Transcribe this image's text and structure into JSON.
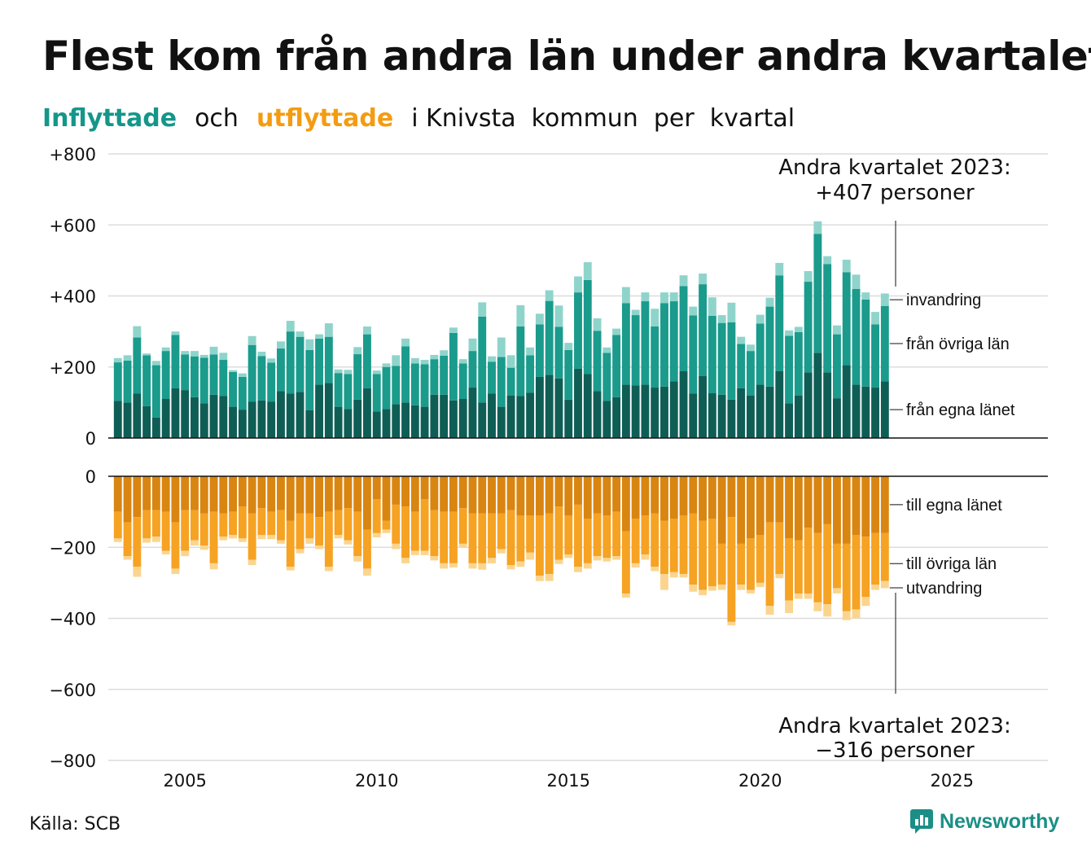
{
  "title": "Flest kom från andra län under andra kvartalet",
  "subtitle": {
    "part1": "Inflyttade",
    "part2": "och",
    "part3": "utflyttade",
    "part4": "i Knivsta  kommun  per  kvartal"
  },
  "source": "Källa: SCB",
  "brand": "Newsworthy",
  "colors": {
    "in_own": "#0f5e56",
    "in_other": "#1a9b8c",
    "in_immig": "#8fd4cb",
    "out_own": "#d98511",
    "out_other": "#f6a223",
    "out_emig": "#fbd58f",
    "teal_text": "#14968a",
    "orange_text": "#f39c12"
  },
  "chart_data": {
    "type": "bar",
    "stacked": true,
    "x_label": "",
    "x_ticks": [
      "2005",
      "2010",
      "2015",
      "2020",
      "2025"
    ],
    "x_range": [
      2003.0,
      2027.5
    ],
    "grid": true,
    "top_panel": {
      "y_ticks": [
        "+800",
        "+600",
        "+400",
        "+200",
        "0"
      ],
      "ylim": [
        0,
        800
      ],
      "series_labels": [
        "invandring",
        "från övriga län",
        "från egna länet"
      ]
    },
    "bottom_panel": {
      "y_ticks": [
        "0",
        "−200",
        "−400",
        "−600",
        "−800"
      ],
      "ylim": [
        -800,
        0
      ],
      "series_labels": [
        "till egna länet",
        "till övriga län",
        "utvandring"
      ]
    },
    "annotation_top": {
      "line1": "Andra kvartalet 2023:",
      "line2": "+407 personer"
    },
    "annotation_bottom": {
      "line1": "Andra kvartalet 2023:",
      "line2": "−316 personer"
    },
    "quarters": [
      "2003Q2",
      "2003Q3",
      "2003Q4",
      "2004Q1",
      "2004Q2",
      "2004Q3",
      "2004Q4",
      "2005Q1",
      "2005Q2",
      "2005Q3",
      "2005Q4",
      "2006Q1",
      "2006Q2",
      "2006Q3",
      "2006Q4",
      "2007Q1",
      "2007Q2",
      "2007Q3",
      "2007Q4",
      "2008Q1",
      "2008Q2",
      "2008Q3",
      "2008Q4",
      "2009Q1",
      "2009Q2",
      "2009Q3",
      "2009Q4",
      "2010Q1",
      "2010Q2",
      "2010Q3",
      "2010Q4",
      "2011Q1",
      "2011Q2",
      "2011Q3",
      "2011Q4",
      "2012Q1",
      "2012Q2",
      "2012Q3",
      "2012Q4",
      "2013Q1",
      "2013Q2",
      "2013Q3",
      "2013Q4",
      "2014Q1",
      "2014Q2",
      "2014Q3",
      "2014Q4",
      "2015Q1",
      "2015Q2",
      "2015Q3",
      "2015Q4",
      "2016Q1",
      "2016Q2",
      "2016Q3",
      "2016Q4",
      "2017Q1",
      "2017Q2",
      "2017Q3",
      "2017Q4",
      "2018Q1",
      "2018Q2",
      "2018Q3",
      "2018Q4",
      "2019Q1",
      "2019Q2",
      "2019Q3",
      "2019Q4",
      "2020Q1",
      "2020Q2",
      "2020Q3",
      "2020Q4",
      "2021Q1",
      "2021Q2",
      "2021Q3",
      "2021Q4",
      "2022Q1",
      "2022Q2",
      "2022Q3",
      "2022Q4",
      "2023Q1",
      "2023Q2"
    ],
    "in_series": [
      {
        "name": "från egna länet",
        "values": [
          105,
          100,
          125,
          90,
          58,
          110,
          140,
          135,
          115,
          98,
          122,
          118,
          88,
          80,
          102,
          106,
          102,
          132,
          125,
          130,
          78,
          150,
          155,
          88,
          82,
          108,
          140,
          75,
          82,
          95,
          100,
          92,
          88,
          122,
          122,
          106,
          110,
          142,
          100,
          125,
          88,
          120,
          118,
          128,
          172,
          178,
          168,
          108,
          195,
          180,
          132,
          105,
          115,
          150,
          148,
          150,
          142,
          145,
          160,
          188,
          125,
          175,
          126,
          122,
          108,
          140,
          120,
          150,
          145,
          188,
          98,
          120,
          185,
          240,
          185,
          112,
          205,
          150,
          145,
          142,
          160
        ]
      },
      {
        "name": "från övriga län",
        "values": [
          108,
          118,
          158,
          143,
          147,
          135,
          150,
          100,
          115,
          128,
          113,
          102,
          98,
          92,
          160,
          125,
          110,
          120,
          175,
          155,
          170,
          130,
          130,
          95,
          98,
          128,
          152,
          105,
          118,
          108,
          158,
          118,
          120,
          100,
          110,
          190,
          100,
          103,
          242,
          90,
          140,
          78,
          196,
          105,
          148,
          208,
          145,
          140,
          215,
          265,
          170,
          135,
          175,
          230,
          198,
          235,
          172,
          235,
          225,
          240,
          220,
          258,
          218,
          202,
          218,
          125,
          125,
          172,
          225,
          270,
          190,
          178,
          255,
          335,
          305,
          180,
          262,
          270,
          245,
          178,
          212
        ]
      },
      {
        "name": "invandring",
        "values": [
          12,
          15,
          32,
          5,
          12,
          10,
          10,
          10,
          15,
          8,
          22,
          20,
          5,
          10,
          25,
          12,
          12,
          20,
          30,
          15,
          30,
          12,
          38,
          10,
          12,
          20,
          22,
          10,
          10,
          30,
          22,
          15,
          12,
          12,
          15,
          15,
          12,
          35,
          40,
          15,
          55,
          35,
          60,
          22,
          30,
          30,
          60,
          20,
          45,
          50,
          35,
          15,
          18,
          45,
          15,
          25,
          50,
          30,
          25,
          30,
          25,
          30,
          52,
          22,
          55,
          20,
          18,
          25,
          25,
          35,
          15,
          15,
          30,
          35,
          22,
          25,
          35,
          40,
          20,
          35,
          35
        ]
      }
    ],
    "out_series": [
      {
        "name": "till egna länet",
        "values": [
          -100,
          -130,
          -115,
          -95,
          -95,
          -100,
          -130,
          -95,
          -95,
          -105,
          -100,
          -105,
          -100,
          -85,
          -105,
          -90,
          -100,
          -95,
          -125,
          -105,
          -105,
          -115,
          -100,
          -95,
          -90,
          -100,
          -150,
          -65,
          -125,
          -80,
          -85,
          -100,
          -65,
          -95,
          -100,
          -100,
          -90,
          -105,
          -105,
          -105,
          -105,
          -95,
          -110,
          -110,
          -110,
          -105,
          -85,
          -110,
          -80,
          -120,
          -105,
          -110,
          -100,
          -155,
          -120,
          -110,
          -105,
          -125,
          -120,
          -110,
          -105,
          -125,
          -120,
          -190,
          -115,
          -190,
          -175,
          -165,
          -130,
          -130,
          -175,
          -180,
          -145,
          -160,
          -135,
          -190,
          -190,
          -165,
          -170,
          -160,
          -160
        ]
      },
      {
        "name": "till övriga län",
        "values": [
          -75,
          -95,
          -140,
          -80,
          -75,
          -110,
          -130,
          -115,
          -85,
          -90,
          -145,
          -65,
          -65,
          -90,
          -130,
          -75,
          -65,
          -85,
          -130,
          -100,
          -70,
          -80,
          -155,
          -70,
          -90,
          -125,
          -110,
          -95,
          -25,
          -110,
          -145,
          -110,
          -145,
          -130,
          -145,
          -145,
          -100,
          -140,
          -140,
          -125,
          -100,
          -155,
          -130,
          -105,
          -170,
          -170,
          -150,
          -110,
          -175,
          -125,
          -120,
          -120,
          -125,
          -175,
          -125,
          -110,
          -150,
          -150,
          -150,
          -165,
          -200,
          -195,
          -190,
          -115,
          -295,
          -115,
          -145,
          -135,
          -235,
          -145,
          -175,
          -150,
          -185,
          -195,
          -225,
          -125,
          -190,
          -210,
          -170,
          -145,
          -135
        ]
      },
      {
        "name": "utvandring",
        "values": [
          -10,
          -10,
          -28,
          -12,
          -15,
          -10,
          -15,
          -15,
          -15,
          -12,
          -17,
          -10,
          -10,
          -10,
          -15,
          -12,
          -12,
          -10,
          -10,
          -12,
          -15,
          -10,
          -12,
          -10,
          -12,
          -15,
          -20,
          -12,
          -10,
          -15,
          -15,
          -12,
          -12,
          -12,
          -15,
          -12,
          -10,
          -15,
          -18,
          -15,
          -12,
          -12,
          -15,
          -20,
          -15,
          -20,
          -12,
          -10,
          -15,
          -15,
          -12,
          -10,
          -10,
          -12,
          -12,
          -15,
          -12,
          -45,
          -15,
          -10,
          -20,
          -15,
          -12,
          -15,
          -10,
          -15,
          -10,
          -12,
          -25,
          -12,
          -35,
          -15,
          -15,
          -25,
          -35,
          -15,
          -25,
          -25,
          -25,
          -15,
          -20
        ]
      }
    ]
  }
}
